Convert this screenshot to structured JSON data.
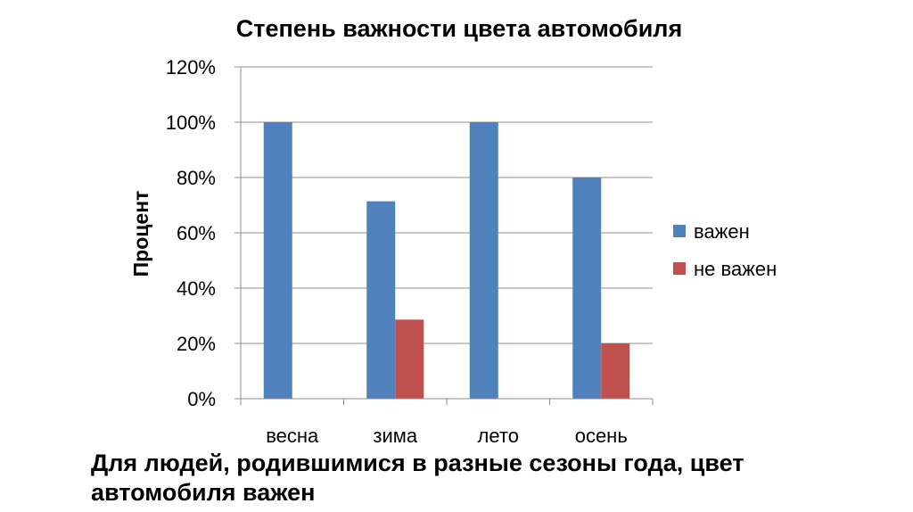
{
  "chart_data": {
    "type": "bar",
    "title": "Степень важности цвета автомобиля",
    "xlabel": "",
    "ylabel": "Процент",
    "categories": [
      "весна",
      "зима",
      "лето",
      "осень"
    ],
    "series": [
      {
        "name": "важен",
        "color": "#4F81BD",
        "values": [
          100,
          71.4,
          100,
          80
        ]
      },
      {
        "name": "не важен",
        "color": "#C0504D",
        "values": [
          0,
          28.6,
          0,
          20
        ]
      }
    ],
    "ylim": [
      0,
      120
    ],
    "yticks": [
      "0%",
      "20%",
      "40%",
      "60%",
      "80%",
      "100%",
      "120%"
    ],
    "ytick_values": [
      0,
      20,
      40,
      60,
      80,
      100,
      120
    ],
    "grid": true,
    "legend_position": "right"
  },
  "caption": "Для людей, родившимися в разные сезоны года, цвет автомобиля важен"
}
